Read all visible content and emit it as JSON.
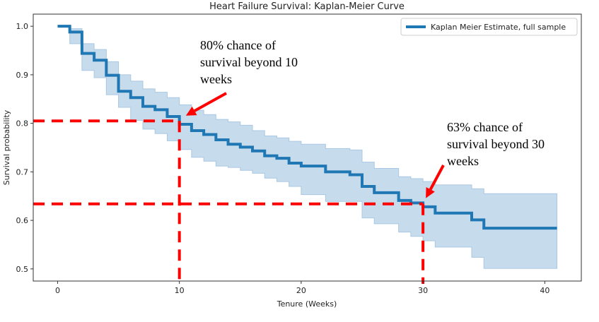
{
  "chart_data": {
    "type": "line",
    "title": "Heart Failure Survival: Kaplan-Meier Curve",
    "xlabel": "Tenure (Weeks)",
    "ylabel": "Survival probability",
    "xlim": [
      -2,
      43
    ],
    "ylim": [
      0.475,
      1.025
    ],
    "xticks": [
      0,
      10,
      20,
      30,
      40
    ],
    "yticks": [
      0.5,
      0.6,
      0.7,
      0.8,
      0.9,
      1.0
    ],
    "ytick_labels": [
      "0.5",
      "0.6",
      "0.7",
      "0.8",
      "0.9",
      "1.0"
    ],
    "grid": false,
    "legend": {
      "placement": "top-right",
      "entries": [
        "Kaplan Meier Estimate, full sample"
      ]
    },
    "series": [
      {
        "name": "Kaplan Meier Estimate, full sample",
        "color": "#1f77b4",
        "ci_color": "#c6dbec",
        "step": "post",
        "x": [
          0,
          1,
          2,
          3,
          4,
          5,
          6,
          7,
          8,
          9,
          10,
          11,
          12,
          13,
          14,
          15,
          16,
          17,
          18,
          19,
          20,
          22,
          24,
          25,
          26,
          28,
          29,
          30,
          31,
          34,
          35,
          41
        ],
        "y": [
          1.0,
          0.988,
          0.944,
          0.93,
          0.899,
          0.866,
          0.853,
          0.835,
          0.828,
          0.814,
          0.798,
          0.785,
          0.777,
          0.766,
          0.757,
          0.751,
          0.743,
          0.733,
          0.728,
          0.718,
          0.712,
          0.7,
          0.694,
          0.67,
          0.657,
          0.641,
          0.636,
          0.628,
          0.615,
          0.601,
          0.584,
          0.584
        ],
        "ci_upper": [
          1.0,
          0.995,
          0.964,
          0.952,
          0.927,
          0.9,
          0.887,
          0.871,
          0.864,
          0.853,
          0.838,
          0.827,
          0.818,
          0.808,
          0.803,
          0.796,
          0.785,
          0.774,
          0.77,
          0.763,
          0.757,
          0.748,
          0.745,
          0.72,
          0.707,
          0.69,
          0.686,
          0.68,
          0.673,
          0.665,
          0.655,
          0.655
        ],
        "ci_lower": [
          1.0,
          0.964,
          0.909,
          0.894,
          0.859,
          0.833,
          0.806,
          0.788,
          0.779,
          0.764,
          0.746,
          0.73,
          0.722,
          0.712,
          0.709,
          0.703,
          0.697,
          0.687,
          0.68,
          0.67,
          0.653,
          0.639,
          0.639,
          0.605,
          0.593,
          0.576,
          0.567,
          0.558,
          0.545,
          0.524,
          0.501,
          0.501
        ]
      }
    ],
    "reference_lines": [
      {
        "x": 10,
        "y": 0.805,
        "color": "#ff0000"
      },
      {
        "x": 30,
        "y": 0.634,
        "color": "#ff0000"
      }
    ],
    "annotations": [
      {
        "lines": [
          "80% chance of",
          "survival beyond 10",
          "weeks"
        ],
        "points_to": {
          "x": 10.3,
          "y": 0.81
        }
      },
      {
        "lines": [
          "63% chance of",
          "survival beyond 30",
          "weeks"
        ],
        "points_to": {
          "x": 30,
          "y": 0.64
        }
      }
    ]
  }
}
